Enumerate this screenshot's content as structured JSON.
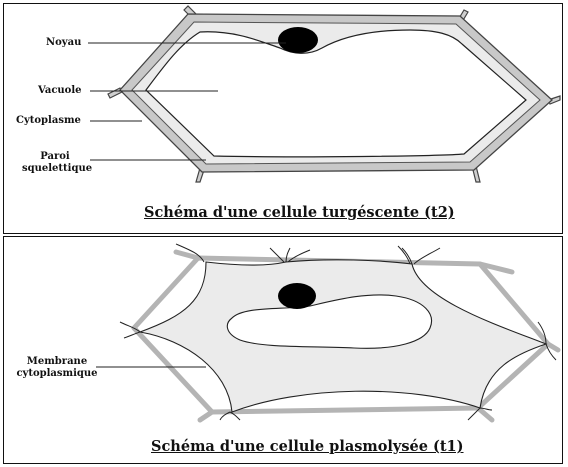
{
  "top_panel": {
    "labels": {
      "noyau": "Noyau",
      "vacuole": "Vacuole",
      "cytoplasme": "Cytoplasme",
      "paroi": "Paroi squelettique"
    },
    "caption": "Schéma d'une cellule turgéscente (t2)"
  },
  "bottom_panel": {
    "labels": {
      "membrane": "Membrane cytoplasmique"
    },
    "caption": "Schéma d'une cellule plasmolysée (t1)"
  },
  "colors": {
    "wall_fill": "#c8c8c8",
    "wall_stroke": "#444444",
    "cytoplasm_fill": "#ebebeb",
    "nucleus": "#000000",
    "plasmolysed_wall": "#b4b4b4",
    "border": "#111111"
  }
}
